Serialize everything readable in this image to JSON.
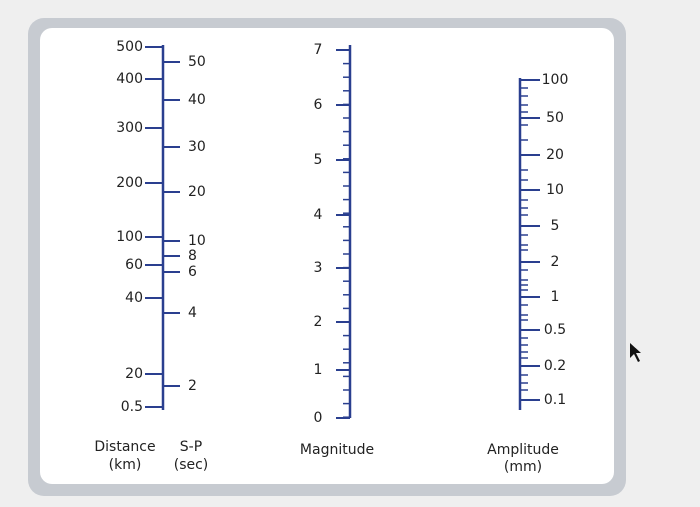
{
  "scales": [
    {
      "title": [
        "Distance",
        "(km)"
      ],
      "ticks": [
        500,
        400,
        300,
        200,
        100,
        60,
        40,
        20,
        0.5
      ]
    },
    {
      "title": [
        "S-P",
        "(sec)"
      ],
      "ticks": [
        50,
        40,
        30,
        20,
        10,
        8,
        6,
        4,
        2
      ]
    },
    {
      "title": [
        "Magnitude"
      ],
      "ticks": [
        7,
        6,
        5,
        4,
        3,
        2,
        1,
        0
      ]
    },
    {
      "title": [
        "Amplitude",
        "(mm)"
      ],
      "ticks": [
        100,
        50,
        20,
        10,
        5,
        2,
        1,
        0.5,
        0.2,
        0.1
      ]
    }
  ]
}
